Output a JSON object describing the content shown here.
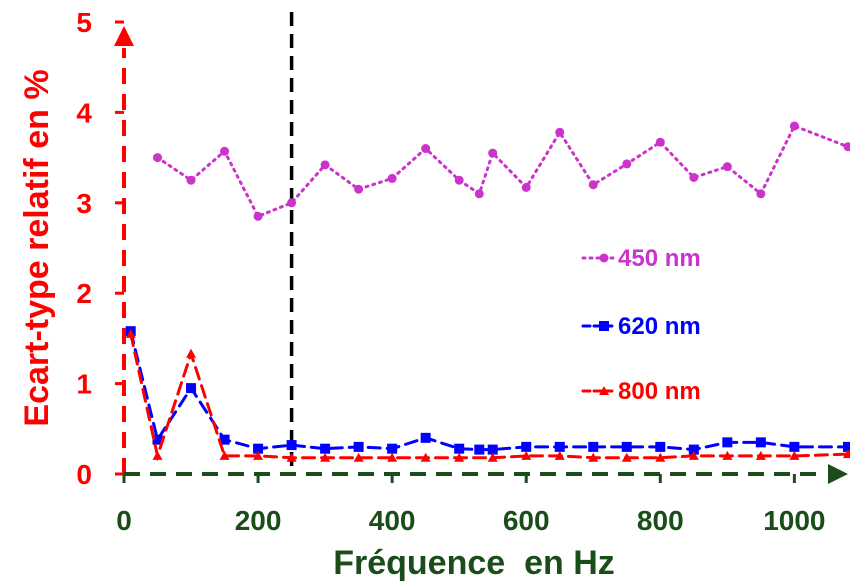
{
  "chart_data": {
    "type": "line",
    "xlabel": "Fréquence  en Hz",
    "ylabel": "Ecart-type relatif en %",
    "xlim": [
      0,
      1080
    ],
    "ylim": [
      0,
      5
    ],
    "x_ticks": [
      "0",
      "200",
      "400",
      "600",
      "800",
      "1000"
    ],
    "y_ticks": [
      "0",
      "1",
      "2",
      "3",
      "4",
      "5"
    ],
    "grid": false,
    "legend_position": "right",
    "reference_line": {
      "x": 250,
      "style": "dashed",
      "color": "#000000"
    },
    "colors": {
      "x_axis": "#1b4d1b",
      "y_axis": "#ff0000",
      "xlabel": "#1b4d1b",
      "ylabel": "#ff0000"
    },
    "series": [
      {
        "name": "450 nm",
        "color": "#cc33cc",
        "marker": "circle",
        "line": "dotted",
        "x": [
          50,
          100,
          150,
          200,
          250,
          300,
          350,
          400,
          450,
          500,
          530,
          550,
          600,
          650,
          700,
          750,
          800,
          850,
          900,
          950,
          1000,
          1080
        ],
        "y": [
          3.5,
          3.25,
          3.57,
          2.85,
          3.0,
          3.42,
          3.15,
          3.27,
          3.6,
          3.25,
          3.1,
          3.55,
          3.17,
          3.78,
          3.2,
          3.43,
          3.67,
          3.28,
          3.4,
          3.1,
          3.85,
          3.62
        ]
      },
      {
        "name": "620 nm",
        "color": "#0000ff",
        "marker": "square",
        "line": "dashed",
        "x": [
          10,
          50,
          100,
          150,
          200,
          250,
          300,
          350,
          400,
          450,
          500,
          530,
          550,
          600,
          650,
          700,
          750,
          800,
          850,
          900,
          950,
          1000,
          1080
        ],
        "y": [
          1.58,
          0.38,
          0.95,
          0.38,
          0.28,
          0.32,
          0.28,
          0.3,
          0.28,
          0.4,
          0.28,
          0.27,
          0.27,
          0.3,
          0.3,
          0.3,
          0.3,
          0.3,
          0.27,
          0.35,
          0.35,
          0.3,
          0.3
        ]
      },
      {
        "name": "800 nm",
        "color": "#ff0000",
        "marker": "triangle",
        "line": "dashed",
        "x": [
          10,
          50,
          100,
          150,
          200,
          250,
          300,
          350,
          400,
          450,
          500,
          550,
          600,
          650,
          700,
          750,
          800,
          850,
          900,
          950,
          1000,
          1080
        ],
        "y": [
          1.55,
          0.2,
          1.33,
          0.2,
          0.2,
          0.18,
          0.18,
          0.18,
          0.18,
          0.18,
          0.18,
          0.18,
          0.2,
          0.2,
          0.18,
          0.18,
          0.18,
          0.2,
          0.2,
          0.2,
          0.2,
          0.22
        ]
      }
    ]
  }
}
